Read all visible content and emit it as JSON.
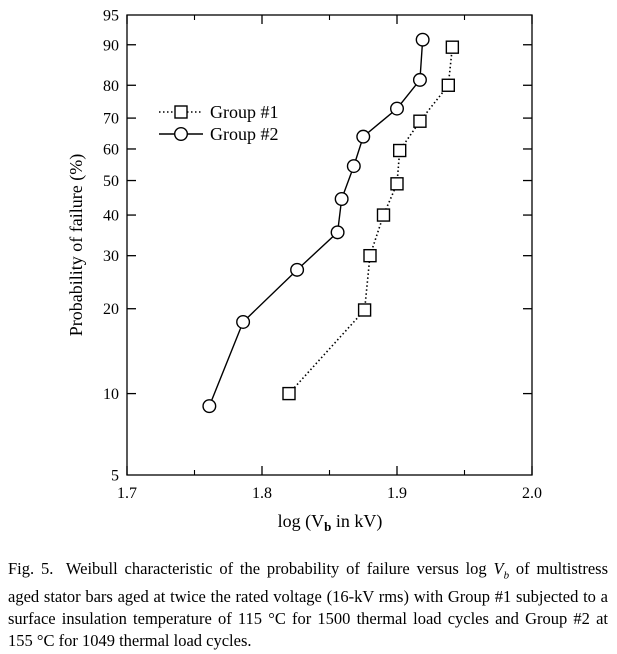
{
  "chart_data": {
    "type": "scatter",
    "xlabel": "log (V",
    "xlabel_sub": "b",
    "xlabel_end": " in kV)",
    "ylabel": "Probability of failure (%)",
    "xlim": [
      1.7,
      2.0
    ],
    "ylim": [
      5,
      95
    ],
    "y_scale": "weibull",
    "x_ticks": [
      1.7,
      1.8,
      1.9,
      2.0
    ],
    "x_tick_labels": [
      "1.7",
      "1.8",
      "1.9",
      "2.0"
    ],
    "y_ticks": [
      5,
      10,
      20,
      30,
      40,
      50,
      60,
      70,
      80,
      90,
      95
    ],
    "y_tick_labels": [
      "5",
      "10",
      "20",
      "30",
      "40",
      "50",
      "60",
      "70",
      "80",
      "90",
      "95"
    ],
    "grid": false,
    "legend_position": "top-left",
    "series": [
      {
        "name": "Group #1",
        "marker": "square",
        "line": "dotted",
        "x": [
          1.82,
          1.876,
          1.88,
          1.89,
          1.9,
          1.902,
          1.917,
          1.938,
          1.941
        ],
        "y": [
          10,
          19.8,
          30,
          40,
          49,
          59.5,
          69,
          80,
          89.5
        ]
      },
      {
        "name": "Group #2",
        "marker": "circle",
        "line": "solid",
        "x": [
          1.761,
          1.786,
          1.826,
          1.856,
          1.859,
          1.868,
          1.875,
          1.9,
          1.917,
          1.919
        ],
        "y": [
          9,
          18,
          27,
          35.5,
          44.5,
          54.5,
          64,
          73,
          81.5,
          91
        ]
      }
    ]
  },
  "caption": {
    "label": "Fig. 5.",
    "part1": "Weibull characteristic of the probability of failure versus log ",
    "var": "V",
    "var_sub": "b",
    "part2": " of multistress aged stator bars aged at twice the rated voltage (16-kV rms) with Group #1 subjected to a surface insulation temperature of 115 °C for 1500 thermal load cycles and Group #2 at 155 °C for 1049 thermal load cycles."
  }
}
